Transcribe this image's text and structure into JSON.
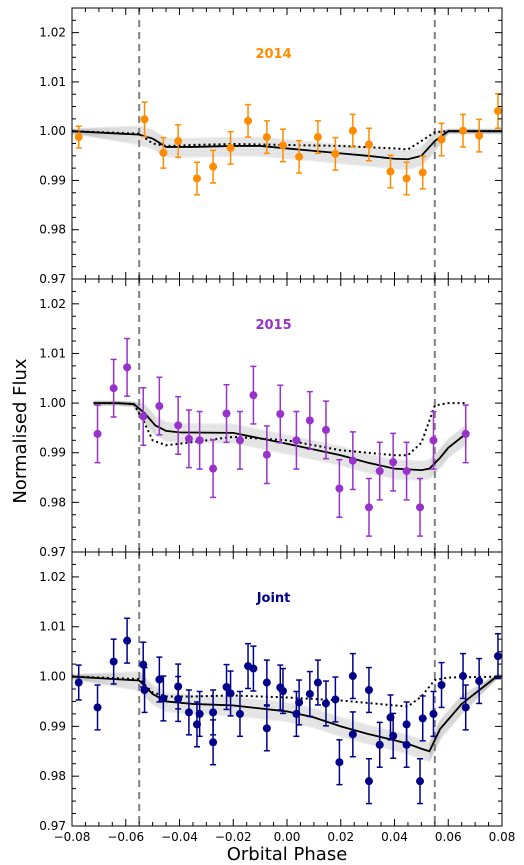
{
  "figure": {
    "ylabel": "Normalised Flux",
    "xlabel": "Orbital Phase"
  },
  "chart_data": [
    {
      "type": "scatter",
      "title": "2014",
      "color": "#ff8c00",
      "xlim": [
        -0.08,
        0.08
      ],
      "ylim": [
        0.97,
        1.025
      ],
      "x_ticks": [
        "−0.08",
        "−0.06",
        "−0.04",
        "−0.02",
        "0.00",
        "0.02",
        "0.04",
        "0.06",
        "0.08"
      ],
      "y_ticks": [
        "0.97",
        "0.98",
        "0.99",
        "1.00",
        "1.01",
        "1.02"
      ],
      "vlines": [
        -0.055,
        0.055
      ],
      "series": [
        {
          "kind": "points",
          "x": [
            -0.0775,
            -0.053,
            -0.046,
            -0.0405,
            -0.0335,
            -0.0275,
            -0.021,
            -0.0145,
            -0.0075,
            -0.0015,
            0.0045,
            0.0115,
            0.018,
            0.0245,
            0.0305,
            0.0385,
            0.0445,
            0.0505,
            0.0575,
            0.0655,
            0.0715,
            0.0785
          ],
          "y": [
            0.9988,
            1.0024,
            0.9956,
            0.998,
            0.9904,
            0.9928,
            0.9966,
            1.0021,
            0.9988,
            0.9971,
            0.9948,
            0.9988,
            0.9954,
            1.0001,
            0.9973,
            0.9918,
            0.9904,
            0.9916,
            0.9983,
            1.0001,
            0.9991,
            1.0041
          ],
          "yerr": [
            0.0022,
            0.0035,
            0.0031,
            0.0033,
            0.0033,
            0.0033,
            0.0033,
            0.0033,
            0.0033,
            0.0033,
            0.0033,
            0.0033,
            0.0033,
            0.0033,
            0.0033,
            0.0033,
            0.0033,
            0.0033,
            0.0033,
            0.0033,
            0.0033,
            0.0035
          ]
        },
        {
          "kind": "model",
          "x": [
            -0.08,
            -0.055,
            -0.05,
            -0.045,
            -0.035,
            -0.02,
            -0.01,
            0.0,
            0.01,
            0.02,
            0.03,
            0.04,
            0.045,
            0.05,
            0.055,
            0.06,
            0.08
          ],
          "y": [
            1.0,
            0.9993,
            0.9985,
            0.9968,
            0.9968,
            0.997,
            0.997,
            0.9965,
            0.996,
            0.9955,
            0.995,
            0.9944,
            0.9943,
            0.995,
            0.998,
            1.0,
            1.0
          ]
        },
        {
          "kind": "model-dotted",
          "x": [
            -0.08,
            -0.055,
            -0.05,
            -0.045,
            -0.035,
            -0.02,
            0.0,
            0.02,
            0.04,
            0.045,
            0.05,
            0.055,
            0.06,
            0.08
          ],
          "y": [
            1.0,
            0.9995,
            0.9975,
            0.997,
            0.9972,
            0.9974,
            0.9972,
            0.997,
            0.9965,
            0.9963,
            0.998,
            0.9998,
            1.0,
            1.0
          ]
        }
      ]
    },
    {
      "type": "scatter",
      "title": "2015",
      "color": "#9932cc",
      "xlim": [
        -0.08,
        0.08
      ],
      "ylim": [
        0.97,
        1.025
      ],
      "x_ticks": [],
      "y_ticks": [
        "0.97",
        "0.98",
        "0.99",
        "1.00",
        "1.01",
        "1.02"
      ],
      "vlines": [
        -0.055,
        0.055
      ],
      "series": [
        {
          "kind": "points",
          "x": [
            -0.0705,
            -0.0645,
            -0.0595,
            -0.0535,
            -0.0475,
            -0.0405,
            -0.0365,
            -0.0325,
            -0.0275,
            -0.0225,
            -0.0175,
            -0.0125,
            -0.0075,
            -0.0025,
            0.0035,
            0.0085,
            0.0145,
            0.0195,
            0.0245,
            0.0305,
            0.0345,
            0.0395,
            0.0445,
            0.0495,
            0.0545,
            0.0665
          ],
          "y": [
            0.9938,
            1.003,
            1.0072,
            0.9973,
            0.9994,
            0.9955,
            0.9928,
            0.9925,
            0.9868,
            0.9979,
            0.9925,
            1.0016,
            0.9896,
            0.9978,
            0.9925,
            0.9965,
            0.9946,
            0.9828,
            0.9884,
            0.979,
            0.9863,
            0.9881,
            0.9863,
            0.979,
            0.9925,
            0.9938
          ],
          "yerr": [
            0.0058,
            0.0058,
            0.0058,
            0.0058,
            0.0058,
            0.0058,
            0.0058,
            0.0058,
            0.0058,
            0.0058,
            0.0058,
            0.0058,
            0.0058,
            0.0058,
            0.0058,
            0.0058,
            0.0058,
            0.0058,
            0.0058,
            0.0058,
            0.0058,
            0.0058,
            0.0058,
            0.0058,
            0.0058,
            0.0058
          ]
        },
        {
          "kind": "model",
          "x": [
            -0.072,
            -0.063,
            -0.057,
            -0.053,
            -0.049,
            -0.045,
            -0.04,
            -0.02,
            0.0,
            0.02,
            0.03,
            0.04,
            0.05,
            0.053,
            0.057,
            0.06,
            0.067
          ],
          "y": [
            1.0,
            1.0,
            0.9998,
            0.998,
            0.9955,
            0.9944,
            0.9941,
            0.994,
            0.9918,
            0.9895,
            0.988,
            0.9868,
            0.9865,
            0.9868,
            0.989,
            0.991,
            0.994
          ]
        },
        {
          "kind": "model-dotted",
          "x": [
            -0.072,
            -0.063,
            -0.057,
            -0.053,
            -0.05,
            -0.045,
            -0.04,
            -0.02,
            0.0,
            0.02,
            0.04,
            0.045,
            0.05,
            0.055,
            0.06,
            0.067
          ],
          "y": [
            1.0,
            1.0,
            0.9998,
            0.996,
            0.9925,
            0.9915,
            0.9918,
            0.9932,
            0.9925,
            0.9905,
            0.9895,
            0.9895,
            0.992,
            0.9995,
            1.0,
            1.0
          ]
        }
      ]
    },
    {
      "type": "scatter",
      "title": "Joint",
      "color": "#00008b",
      "xlim": [
        -0.08,
        0.08
      ],
      "ylim": [
        0.97,
        1.025
      ],
      "x_ticks": [
        "−0.08",
        "−0.06",
        "−0.04",
        "−0.02",
        "0.00",
        "0.02",
        "0.04",
        "0.06",
        "0.08"
      ],
      "y_ticks": [
        "0.97",
        "0.98",
        "0.99",
        "1.00",
        "1.01",
        "1.02"
      ],
      "vlines": [
        -0.055,
        0.055
      ],
      "series": [
        {
          "kind": "points",
          "x": [
            -0.0775,
            -0.0705,
            -0.0645,
            -0.0595,
            -0.0535,
            -0.053,
            -0.0475,
            -0.046,
            -0.0405,
            -0.0405,
            -0.0365,
            -0.0335,
            -0.0325,
            -0.0275,
            -0.0275,
            -0.0225,
            -0.021,
            -0.0175,
            -0.0145,
            -0.0125,
            -0.0075,
            -0.0075,
            -0.0025,
            -0.0015,
            0.0035,
            0.0045,
            0.0085,
            0.0115,
            0.0145,
            0.018,
            0.0195,
            0.0245,
            0.0245,
            0.0305,
            0.0305,
            0.0345,
            0.0385,
            0.0395,
            0.0445,
            0.0445,
            0.0495,
            0.0505,
            0.0545,
            0.0575,
            0.0655,
            0.0665,
            0.0715,
            0.0785
          ],
          "y": [
            0.9988,
            0.9938,
            1.003,
            1.0072,
            1.0024,
            0.9973,
            0.9994,
            0.9956,
            0.998,
            0.9955,
            0.9928,
            0.9904,
            0.9925,
            0.9928,
            0.9868,
            0.9979,
            0.9966,
            0.9925,
            1.0021,
            1.0016,
            0.9988,
            0.9896,
            0.9978,
            0.9971,
            0.9925,
            0.9948,
            0.9965,
            0.9988,
            0.9946,
            0.9954,
            0.9828,
            1.0001,
            0.9884,
            0.9973,
            0.979,
            0.9863,
            0.9918,
            0.9881,
            0.9904,
            0.9863,
            0.979,
            0.9916,
            0.9925,
            0.9983,
            1.0001,
            0.9938,
            0.9991,
            1.0041
          ],
          "yerr": [
            0.0035,
            0.0045,
            0.0045,
            0.0045,
            0.0045,
            0.0045,
            0.0045,
            0.0045,
            0.0045,
            0.0045,
            0.0045,
            0.0045,
            0.0045,
            0.0045,
            0.0045,
            0.0045,
            0.0045,
            0.0045,
            0.0045,
            0.0045,
            0.0045,
            0.0045,
            0.0045,
            0.0045,
            0.0045,
            0.0045,
            0.0045,
            0.0045,
            0.0045,
            0.0045,
            0.0045,
            0.0045,
            0.0045,
            0.0045,
            0.0045,
            0.0045,
            0.0045,
            0.0045,
            0.0045,
            0.0045,
            0.0045,
            0.0045,
            0.0045,
            0.0045,
            0.0045,
            0.0045,
            0.0045,
            0.0045
          ]
        },
        {
          "kind": "model",
          "x": [
            -0.08,
            -0.055,
            -0.05,
            -0.045,
            -0.035,
            -0.02,
            0.0,
            0.01,
            0.02,
            0.03,
            0.04,
            0.045,
            0.05,
            0.053,
            0.057,
            0.065,
            0.078,
            0.08
          ],
          "y": [
            1.0,
            0.9992,
            0.9965,
            0.995,
            0.9945,
            0.9942,
            0.993,
            0.9918,
            0.99,
            0.9885,
            0.9872,
            0.9865,
            0.9855,
            0.985,
            0.9895,
            0.9945,
            1.0,
            1.0
          ]
        },
        {
          "kind": "model-dotted",
          "x": [
            -0.08,
            -0.055,
            -0.05,
            -0.045,
            -0.035,
            -0.02,
            0.0,
            0.02,
            0.04,
            0.045,
            0.05,
            0.055,
            0.06,
            0.08
          ],
          "y": [
            1.0,
            0.9995,
            0.9968,
            0.996,
            0.996,
            0.9962,
            0.9958,
            0.9952,
            0.9942,
            0.994,
            0.996,
            0.9993,
            0.9998,
            1.0
          ]
        }
      ]
    }
  ]
}
